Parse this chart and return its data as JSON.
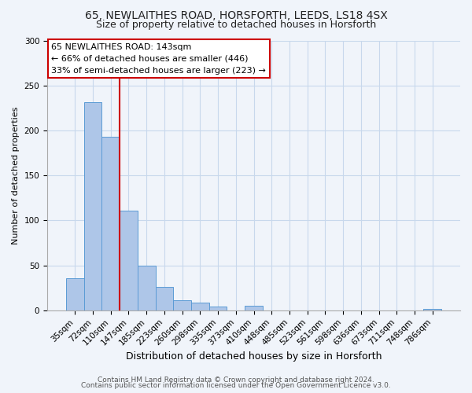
{
  "title1": "65, NEWLAITHES ROAD, HORSFORTH, LEEDS, LS18 4SX",
  "title2": "Size of property relative to detached houses in Horsforth",
  "xlabel": "Distribution of detached houses by size in Horsforth",
  "ylabel": "Number of detached properties",
  "bar_labels": [
    "35sqm",
    "72sqm",
    "110sqm",
    "147sqm",
    "185sqm",
    "223sqm",
    "260sqm",
    "298sqm",
    "335sqm",
    "373sqm",
    "410sqm",
    "448sqm",
    "485sqm",
    "523sqm",
    "561sqm",
    "598sqm",
    "636sqm",
    "673sqm",
    "711sqm",
    "748sqm",
    "786sqm"
  ],
  "bar_values": [
    36,
    231,
    193,
    111,
    50,
    26,
    11,
    9,
    4,
    0,
    5,
    0,
    0,
    0,
    0,
    0,
    0,
    0,
    0,
    0,
    2
  ],
  "bar_color": "#aec6e8",
  "bar_edge_color": "#5b9bd5",
  "vline_x": 2.5,
  "vline_color": "#cc0000",
  "annotation_line1": "65 NEWLAITHES ROAD: 143sqm",
  "annotation_line2": "← 66% of detached houses are smaller (446)",
  "annotation_line3": "33% of semi-detached houses are larger (223) →",
  "box_facecolor": "#ffffff",
  "box_edgecolor": "#cc0000",
  "ylim": [
    0,
    300
  ],
  "yticks": [
    0,
    50,
    100,
    150,
    200,
    250,
    300
  ],
  "footer1": "Contains HM Land Registry data © Crown copyright and database right 2024.",
  "footer2": "Contains public sector information licensed under the Open Government Licence v3.0.",
  "title1_fontsize": 10,
  "title2_fontsize": 9,
  "xlabel_fontsize": 9,
  "ylabel_fontsize": 8,
  "tick_fontsize": 7.5,
  "annotation_fontsize": 8,
  "footer_fontsize": 6.5,
  "grid_color": "#c8d8ec",
  "bg_color": "#f0f4fa"
}
